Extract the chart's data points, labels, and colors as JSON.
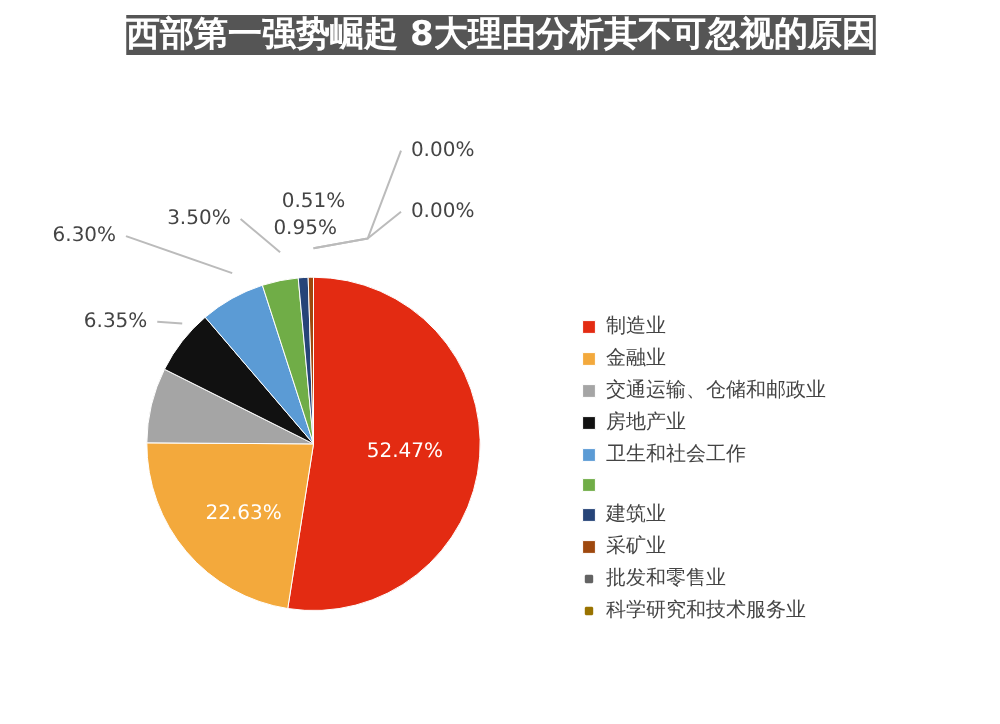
{
  "chart_data": {
    "type": "pie",
    "title": "西部第一强势崛起 8大理由分析其不可忽视的原因",
    "categories": [
      "制造业",
      "金融业",
      "交通运输、仓储和邮政业",
      "房地产业",
      "卫生和社会工作",
      null,
      "建筑业",
      "采矿业",
      "批发和零售业",
      "科学研究和技术服务业"
    ],
    "values": [
      52.47,
      22.63,
      7.29,
      6.35,
      6.3,
      3.5,
      0.95,
      0.51,
      0.0,
      0.0
    ],
    "value_labels": [
      "52.47%",
      "22.63%",
      null,
      "6.35%",
      "6.30%",
      "3.50%",
      "0.95%",
      "0.51%",
      "0.00%",
      "0.00%"
    ],
    "colors": [
      "#e32b12",
      "#f3a93c",
      "#a5a5a5",
      "#111111",
      "#5b9bd5",
      "#70ad47",
      "#264478",
      "#9e480e",
      "#636363",
      "#997300"
    ],
    "legend": "right"
  }
}
